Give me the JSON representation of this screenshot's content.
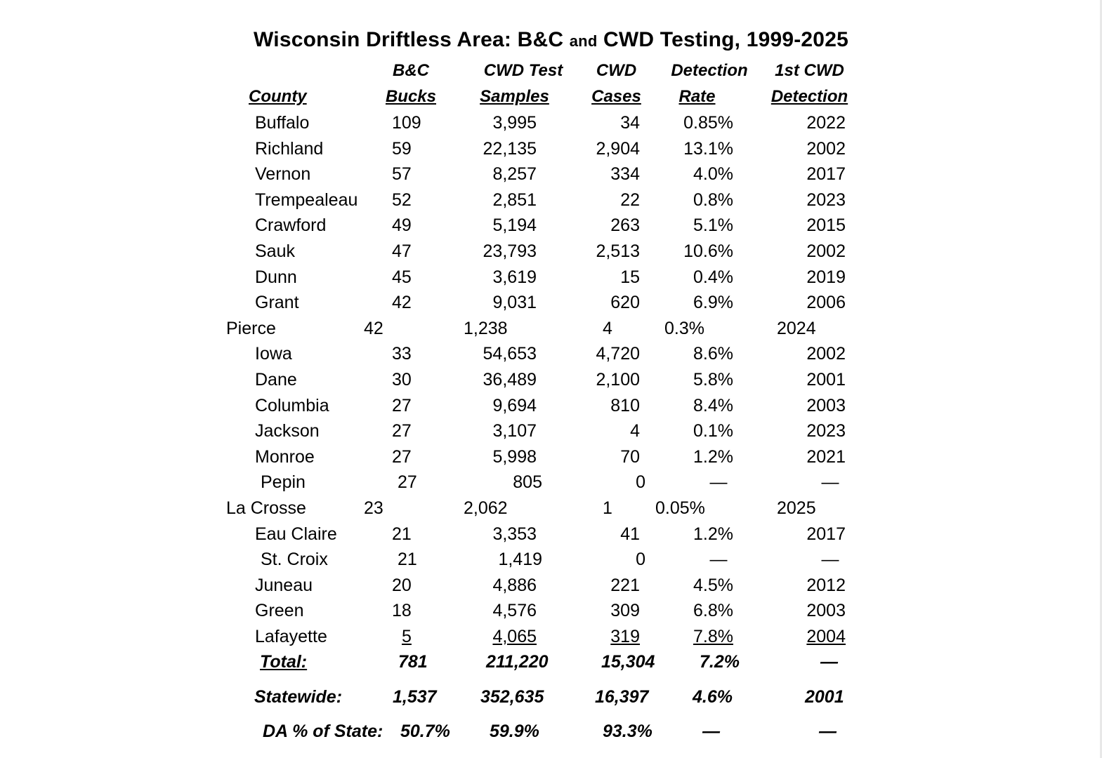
{
  "title": {
    "part1": "Wisconsin Driftless Area: B&C ",
    "part2": "and",
    "part3": " CWD Testing, 1999-2025"
  },
  "headers": {
    "county": "County",
    "bc_line1": "B&C",
    "bc_line2": "Bucks",
    "samples_line1": "CWD Test",
    "samples_line2": "Samples",
    "cases_line1": "CWD",
    "cases_line2": "Cases",
    "rate_line1": "Detection",
    "rate_line2": "Rate",
    "first_line1": "1st CWD",
    "first_line2": "Detection"
  },
  "rows": [
    {
      "county": "Buffalo",
      "bucks": "109",
      "samples": "3,995",
      "cases": "34",
      "rate": "0.85%",
      "first": "2022"
    },
    {
      "county": "Richland",
      "bucks": "59",
      "samples": "22,135",
      "cases": "2,904",
      "rate": "13.1%",
      "first": "2002"
    },
    {
      "county": "Vernon",
      "bucks": "57",
      "samples": "8,257",
      "cases": "334",
      "rate": "4.0%",
      "first": "2017"
    },
    {
      "county": "Trempealeau",
      "bucks": "52",
      "samples": "2,851",
      "cases": "22",
      "rate": "0.8%",
      "first": "2023"
    },
    {
      "county": "Crawford",
      "bucks": "49",
      "samples": "5,194",
      "cases": "263",
      "rate": "5.1%",
      "first": "2015"
    },
    {
      "county": "Sauk",
      "bucks": "47",
      "samples": "23,793",
      "cases": "2,513",
      "rate": "10.6%",
      "first": "2002"
    },
    {
      "county": "Dunn",
      "bucks": "45",
      "samples": "3,619",
      "cases": "15",
      "rate": "0.4%",
      "first": "2019"
    },
    {
      "county": "Grant",
      "bucks": "42",
      "samples": "9,031",
      "cases": "620",
      "rate": "6.9%",
      "first": "2006"
    },
    {
      "county": "Pierce",
      "bucks": "42",
      "samples": "1,238",
      "cases": "4",
      "rate": "0.3%",
      "first": "2024"
    },
    {
      "county": "Iowa",
      "bucks": "33",
      "samples": "54,653",
      "cases": "4,720",
      "rate": "8.6%",
      "first": "2002"
    },
    {
      "county": "Dane",
      "bucks": "30",
      "samples": "36,489",
      "cases": "2,100",
      "rate": "5.8%",
      "first": "2001"
    },
    {
      "county": "Columbia",
      "bucks": "27",
      "samples": "9,694",
      "cases": "810",
      "rate": "8.4%",
      "first": "2003"
    },
    {
      "county": "Jackson",
      "bucks": "27",
      "samples": "3,107",
      "cases": "4",
      "rate": "0.1%",
      "first": "2023"
    },
    {
      "county": "Monroe",
      "bucks": "27",
      "samples": "5,998",
      "cases": "70",
      "rate": "1.2%",
      "first": "2021"
    },
    {
      "county": "Pepin",
      "bucks": "27",
      "samples": "805",
      "cases": "0",
      "rate": "—",
      "first": "—"
    },
    {
      "county": "La Crosse",
      "bucks": "23",
      "samples": "2,062",
      "cases": "1",
      "rate": "0.05%",
      "first": "2025"
    },
    {
      "county": "Eau Claire",
      "bucks": "21",
      "samples": "3,353",
      "cases": "41",
      "rate": "1.2%",
      "first": "2017"
    },
    {
      "county": "St. Croix",
      "bucks": "21",
      "samples": "1,419",
      "cases": "0",
      "rate": "—",
      "first": "—"
    },
    {
      "county": "Juneau",
      "bucks": "20",
      "samples": "4,886",
      "cases": "221",
      "rate": "4.5%",
      "first": "2012"
    },
    {
      "county": "Green",
      "bucks": "18",
      "samples": "4,576",
      "cases": "309",
      "rate": "6.8%",
      "first": "2003"
    },
    {
      "county": "Lafayette",
      "bucks": "5",
      "samples": "4,065",
      "cases": "319",
      "rate": "7.8%",
      "first": "2004"
    }
  ],
  "total": {
    "label": "Total:",
    "bucks": "781",
    "samples": "211,220",
    "cases": "15,304",
    "rate": "7.2%",
    "first": "—"
  },
  "statewide": {
    "label": "Statewide:",
    "bucks": "1,537",
    "samples": "352,635",
    "cases": "16,397",
    "rate": "4.6%",
    "first": "2001"
  },
  "da_pct": {
    "label": "DA % of State:",
    "bucks": "50.7%",
    "samples": "59.9%",
    "cases": "93.3%",
    "rate": "—",
    "first": "—"
  }
}
